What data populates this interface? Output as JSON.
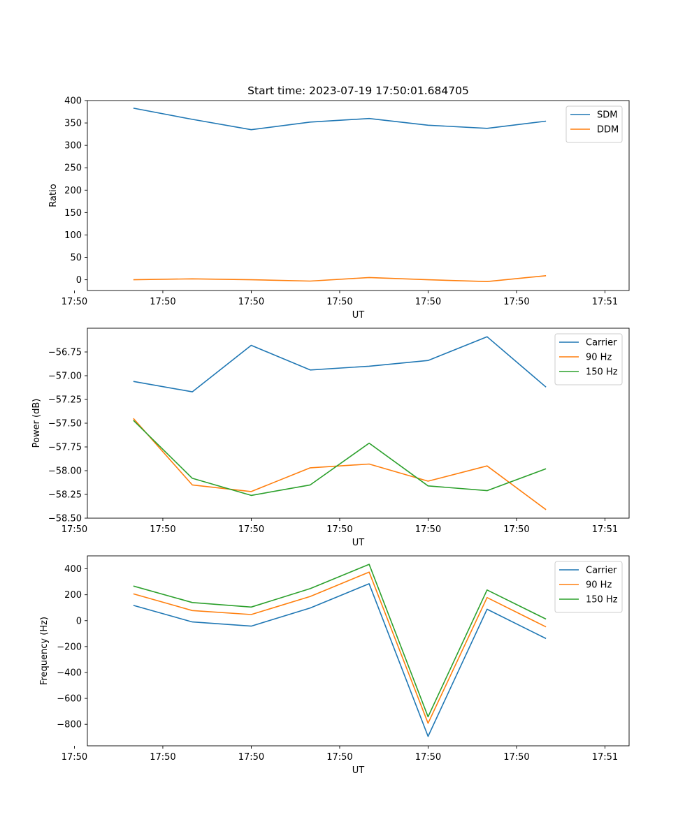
{
  "chart_data": [
    {
      "type": "line",
      "title": "Start time: 2023-07-19 17:50:01.684705",
      "xlabel": "UT",
      "ylabel": "Ratio",
      "x": [
        1,
        2,
        3,
        4,
        5,
        6,
        7,
        8
      ],
      "xlim": [
        0.22,
        9.41
      ],
      "xticks": [
        0,
        1.5,
        3,
        4.5,
        6,
        7.5,
        9
      ],
      "xtick_labels": [
        "17:50",
        "17:50",
        "17:50",
        "17:50",
        "17:50",
        "17:50",
        "17:51"
      ],
      "ylim": [
        -24,
        400
      ],
      "yticks": [
        0,
        50,
        100,
        150,
        200,
        250,
        300,
        350,
        400
      ],
      "ytick_labels": [
        "0",
        "50",
        "100",
        "150",
        "200",
        "250",
        "300",
        "350",
        "400"
      ],
      "series": [
        {
          "name": "SDM",
          "color": "#1f77b4",
          "values": [
            383,
            358,
            335,
            352,
            360,
            345,
            338,
            354
          ]
        },
        {
          "name": "DDM",
          "color": "#ff7f0e",
          "values": [
            0,
            2,
            0,
            -3,
            5,
            0,
            -4,
            9
          ]
        }
      ],
      "legend": "upper-right"
    },
    {
      "type": "line",
      "title": "",
      "xlabel": "UT",
      "ylabel": "Power (dB)",
      "x": [
        1,
        2,
        3,
        4,
        5,
        6,
        7,
        8
      ],
      "xlim": [
        0.22,
        9.41
      ],
      "xticks": [
        0,
        1.5,
        3,
        4.5,
        6,
        7.5,
        9
      ],
      "xtick_labels": [
        "17:50",
        "17:50",
        "17:50",
        "17:50",
        "17:50",
        "17:50",
        "17:51"
      ],
      "ylim": [
        -58.5,
        -56.5
      ],
      "yticks": [
        -58.5,
        -58.25,
        -58.0,
        -57.75,
        -57.5,
        -57.25,
        -57.0,
        -56.75
      ],
      "ytick_labels": [
        "−58.50",
        "−58.25",
        "−58.00",
        "−57.75",
        "−57.50",
        "−57.25",
        "−57.00",
        "−56.75"
      ],
      "series": [
        {
          "name": "Carrier",
          "color": "#1f77b4",
          "values": [
            -57.06,
            -57.17,
            -56.68,
            -56.94,
            -56.9,
            -56.84,
            -56.59,
            -57.12
          ]
        },
        {
          "name": "90 Hz",
          "color": "#ff7f0e",
          "values": [
            -57.45,
            -58.15,
            -58.22,
            -57.97,
            -57.93,
            -58.11,
            -57.95,
            -58.41
          ]
        },
        {
          "name": "150 Hz",
          "color": "#2ca02c",
          "values": [
            -57.47,
            -58.08,
            -58.26,
            -58.15,
            -57.71,
            -58.16,
            -58.21,
            -57.98
          ]
        }
      ],
      "legend": "upper-right"
    },
    {
      "type": "line",
      "title": "",
      "xlabel": "UT",
      "ylabel": "Frequency (Hz)",
      "x": [
        1,
        2,
        3,
        4,
        5,
        6,
        7,
        8
      ],
      "xlim": [
        0.22,
        9.41
      ],
      "xticks": [
        0,
        1.5,
        3,
        4.5,
        6,
        7.5,
        9
      ],
      "xtick_labels": [
        "17:50",
        "17:50",
        "17:50",
        "17:50",
        "17:50",
        "17:50",
        "17:51"
      ],
      "ylim": [
        -966,
        500
      ],
      "yticks": [
        -800,
        -600,
        -400,
        -200,
        0,
        200,
        400
      ],
      "ytick_labels": [
        "−800",
        "−600",
        "−400",
        "−200",
        "0",
        "200",
        "400"
      ],
      "series": [
        {
          "name": "Carrier",
          "color": "#1f77b4",
          "values": [
            118,
            -10,
            -42,
            98,
            285,
            -893,
            88,
            -138
          ]
        },
        {
          "name": "90 Hz",
          "color": "#ff7f0e",
          "values": [
            207,
            78,
            47,
            187,
            375,
            -792,
            178,
            -48
          ]
        },
        {
          "name": "150 Hz",
          "color": "#2ca02c",
          "values": [
            267,
            140,
            105,
            247,
            435,
            -742,
            237,
            12
          ]
        }
      ],
      "legend": "upper-right"
    }
  ]
}
